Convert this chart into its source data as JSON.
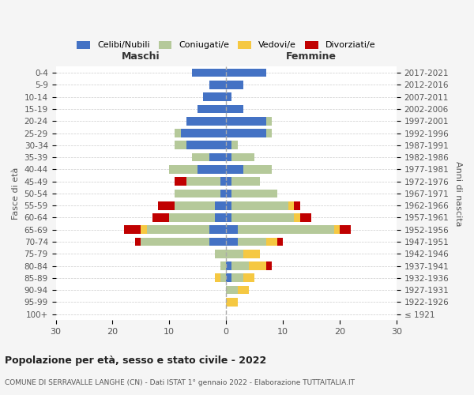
{
  "age_groups": [
    "100+",
    "95-99",
    "90-94",
    "85-89",
    "80-84",
    "75-79",
    "70-74",
    "65-69",
    "60-64",
    "55-59",
    "50-54",
    "45-49",
    "40-44",
    "35-39",
    "30-34",
    "25-29",
    "20-24",
    "15-19",
    "10-14",
    "5-9",
    "0-4"
  ],
  "birth_years": [
    "≤ 1921",
    "1922-1926",
    "1927-1931",
    "1932-1936",
    "1937-1941",
    "1942-1946",
    "1947-1951",
    "1952-1956",
    "1957-1961",
    "1962-1966",
    "1967-1971",
    "1972-1976",
    "1977-1981",
    "1982-1986",
    "1987-1991",
    "1992-1996",
    "1997-2001",
    "2002-2006",
    "2007-2011",
    "2012-2016",
    "2017-2021"
  ],
  "colors": {
    "celibi": "#4472c4",
    "coniugati": "#b5c99a",
    "vedovi": "#f5c842",
    "divorziati": "#c00000"
  },
  "maschi": {
    "celibi": [
      0,
      0,
      0,
      0,
      0,
      0,
      3,
      3,
      2,
      2,
      1,
      1,
      5,
      3,
      7,
      8,
      7,
      5,
      4,
      3,
      6
    ],
    "coniugati": [
      0,
      0,
      0,
      1,
      1,
      2,
      12,
      11,
      8,
      7,
      8,
      6,
      5,
      3,
      2,
      1,
      0,
      0,
      0,
      0,
      0
    ],
    "vedovi": [
      0,
      0,
      0,
      1,
      0,
      0,
      0,
      1,
      0,
      0,
      0,
      0,
      0,
      0,
      0,
      0,
      0,
      0,
      0,
      0,
      0
    ],
    "divorziati": [
      0,
      0,
      0,
      0,
      0,
      0,
      1,
      3,
      3,
      3,
      0,
      2,
      0,
      0,
      0,
      0,
      0,
      0,
      0,
      0,
      0
    ]
  },
  "femmine": {
    "celibi": [
      0,
      0,
      0,
      1,
      1,
      0,
      2,
      2,
      1,
      1,
      1,
      1,
      3,
      1,
      1,
      7,
      7,
      3,
      1,
      3,
      7
    ],
    "coniugati": [
      0,
      0,
      2,
      2,
      3,
      3,
      5,
      17,
      11,
      10,
      8,
      5,
      5,
      4,
      1,
      1,
      1,
      0,
      0,
      0,
      0
    ],
    "vedovi": [
      0,
      2,
      2,
      2,
      3,
      3,
      2,
      1,
      1,
      1,
      0,
      0,
      0,
      0,
      0,
      0,
      0,
      0,
      0,
      0,
      0
    ],
    "divorziati": [
      0,
      0,
      0,
      0,
      1,
      0,
      1,
      2,
      2,
      1,
      0,
      0,
      0,
      0,
      0,
      0,
      0,
      0,
      0,
      0,
      0
    ]
  },
  "xlim": 30,
  "title": "Popolazione per età, sesso e stato civile - 2022",
  "subtitle": "COMUNE DI SERRAVALLE LANGHE (CN) - Dati ISTAT 1° gennaio 2022 - Elaborazione TUTTAITALIA.IT",
  "ylabel_left": "Fasce di età",
  "ylabel_right": "Anni di nascita",
  "xlabel_maschi": "Maschi",
  "xlabel_femmine": "Femmine",
  "bg_color": "#f5f5f5",
  "plot_bg": "#ffffff",
  "legend_labels": [
    "Celibi/Nubili",
    "Coniugati/e",
    "Vedovi/e",
    "Divorziati/e"
  ]
}
